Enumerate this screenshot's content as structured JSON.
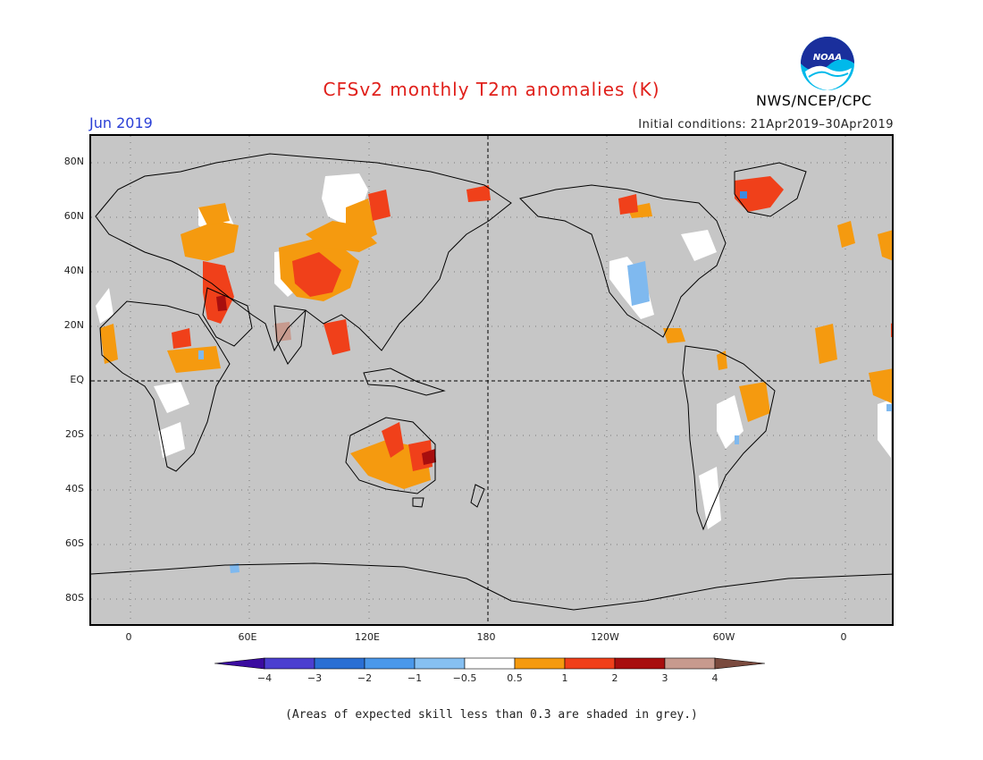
{
  "title": "CFSv2 monthly T2m anomalies (K)",
  "month": "Jun 2019",
  "initial_conditions": "Initial conditions: 21Apr2019–30Apr2019",
  "agency": "NWS/NCEP/CPC",
  "logo_text": "NOAA",
  "note": "(Areas of expected skill less than 0.3 are shaded in grey.)",
  "colors": {
    "grey_mask": "#c6c6c6",
    "white": "#ffffff",
    "orange": "#f59a0f",
    "red": "#f0401a",
    "darkred": "#a80e0e",
    "tan": "#c79a8e",
    "lightblue": "#7fb9ef",
    "blue": "#3d8ae0"
  },
  "axes": {
    "lat_labels": [
      "80N",
      "60N",
      "40N",
      "20N",
      "EQ",
      "20S",
      "40S",
      "60S",
      "80S"
    ],
    "lon_labels": [
      "0",
      "60E",
      "120E",
      "180",
      "120W",
      "60W",
      "0"
    ]
  },
  "colorbar": {
    "labels": [
      "−4",
      "−3",
      "−2",
      "−1",
      "−0.5",
      "0.5",
      "1",
      "2",
      "3",
      "4"
    ],
    "colors": [
      "#3b0ca0",
      "#4b3fd0",
      "#2a6fd4",
      "#4a98ea",
      "#86c0f2",
      "#ffffff",
      "#f59a0f",
      "#f0401a",
      "#a80e0e",
      "#c79a8e",
      "#7a4a3e"
    ]
  },
  "anomaly_regions": [
    {
      "name": "Europe-Middle East warm",
      "level": "orange"
    },
    {
      "name": "Arabian Peninsula warm",
      "level": "red"
    },
    {
      "name": "Central Asia warm",
      "level": "orange"
    },
    {
      "name": "Mongolia-China warm",
      "level": "red"
    },
    {
      "name": "Indochina warm",
      "level": "red"
    },
    {
      "name": "Australia warm",
      "level": "red"
    },
    {
      "name": "Greenland warm",
      "level": "red"
    },
    {
      "name": "Mexico cool",
      "level": "lightblue"
    },
    {
      "name": "Brazil warm",
      "level": "orange"
    }
  ]
}
